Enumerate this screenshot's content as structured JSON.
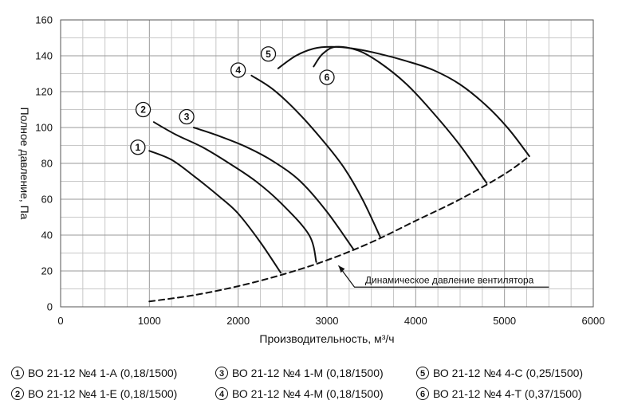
{
  "chart_data": {
    "type": "line",
    "xlabel": "Производительность, м³/ч",
    "ylabel": "Полное давление, Па",
    "xlim": [
      0,
      6000
    ],
    "ylim": [
      0,
      160
    ],
    "xticks": [
      0,
      1000,
      2000,
      3000,
      4000,
      5000,
      6000
    ],
    "yticks": [
      0,
      20,
      40,
      60,
      80,
      100,
      120,
      140,
      160
    ],
    "grid": true,
    "series": [
      {
        "marker": "1",
        "name": "ВО 21-12 №4 1-А (0,18/1500)",
        "x": [
          1000,
          1250,
          1500,
          1800,
          2000,
          2250,
          2480
        ],
        "y": [
          87,
          82,
          73,
          61,
          52,
          36,
          19
        ]
      },
      {
        "marker": "2",
        "name": "ВО 21-12 №4 1-Е (0,18/1500)",
        "x": [
          1050,
          1300,
          1600,
          1900,
          2200,
          2500,
          2800,
          2880
        ],
        "y": [
          103,
          96,
          89,
          80,
          70,
          57,
          40,
          25
        ]
      },
      {
        "marker": "3",
        "name": "ВО 21-12 №4 1-М (0,18/1500)",
        "x": [
          1500,
          1800,
          2100,
          2400,
          2700,
          3000,
          3300
        ],
        "y": [
          100,
          95,
          89,
          81,
          70,
          53,
          32
        ]
      },
      {
        "marker": "4",
        "name": "ВО 21-12 №4 4-М (0,18/1500)",
        "x": [
          2150,
          2400,
          2700,
          3000,
          3200,
          3400,
          3600
        ],
        "y": [
          129,
          121,
          107,
          90,
          77,
          60,
          39
        ]
      },
      {
        "marker": "5",
        "name": "ВО 21-12 №4 4-С (0,25/1500)",
        "x": [
          2450,
          2650,
          2850,
          3050,
          3300,
          3600,
          3900,
          4200,
          4500,
          4800,
          5050,
          5280
        ],
        "y": [
          133,
          140,
          144,
          145,
          144,
          141,
          137,
          132,
          124,
          112,
          99,
          84
        ]
      },
      {
        "marker": "6",
        "name": "ВО 21-12 №4 4-Т (0,37/1500)",
        "x": [
          2850,
          2950,
          3100,
          3350,
          3600,
          3900,
          4200,
          4500,
          4800
        ],
        "y": [
          134,
          141,
          145,
          143,
          136,
          124,
          108,
          90,
          69
        ]
      },
      {
        "name": "Динамическое давление вентилятора",
        "style": "dashed",
        "x": [
          1000,
          1500,
          2000,
          2500,
          3000,
          3500,
          4000,
          4500,
          5000,
          5280
        ],
        "y": [
          3,
          6.5,
          11.5,
          18,
          26,
          36,
          48,
          60,
          74,
          84
        ]
      }
    ],
    "annotations": [
      {
        "text": "Динамическое давление вентилятора"
      }
    ],
    "curve_markers": [
      {
        "label": "1",
        "x": 870,
        "y": 89
      },
      {
        "label": "2",
        "x": 930,
        "y": 110
      },
      {
        "label": "3",
        "x": 1420,
        "y": 106
      },
      {
        "label": "4",
        "x": 2000,
        "y": 132
      },
      {
        "label": "5",
        "x": 2340,
        "y": 141
      },
      {
        "label": "6",
        "x": 3000,
        "y": 128
      }
    ]
  },
  "legend": [
    {
      "num": "1",
      "text": "ВО 21-12 №4 1-А (0,18/1500)"
    },
    {
      "num": "3",
      "text": "ВО 21-12 №4 1-М (0,18/1500)"
    },
    {
      "num": "5",
      "text": "ВО 21-12 №4 4-С (0,25/1500)"
    },
    {
      "num": "2",
      "text": "ВО 21-12 №4 1-Е (0,18/1500)"
    },
    {
      "num": "4",
      "text": "ВО 21-12 №4 4-М (0,18/1500)"
    },
    {
      "num": "6",
      "text": "ВО 21-12 №4 4-Т (0,37/1500)"
    }
  ]
}
